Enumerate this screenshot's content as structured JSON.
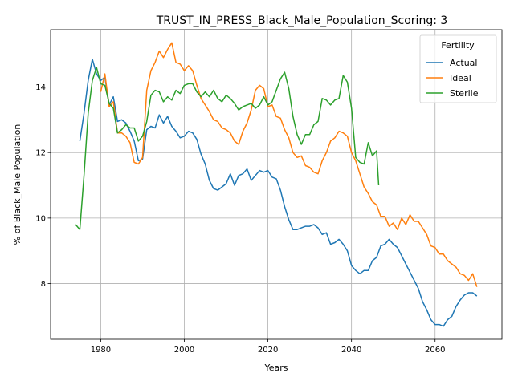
{
  "chart_data": {
    "type": "line",
    "title": "TRUST_IN_PRESS_Black_Male_Population_Scoring: 3",
    "xlabel": "Years",
    "ylabel": "% of Black_Male Population",
    "xlim": [
      1968,
      2076
    ],
    "ylim": [
      6.3,
      15.75
    ],
    "xticks": [
      1980,
      2000,
      2020,
      2040,
      2060
    ],
    "yticks": [
      8,
      10,
      12,
      14
    ],
    "grid": true,
    "legend": {
      "title": "Fertility",
      "placement": "upper right"
    },
    "series": [
      {
        "name": "Actual",
        "color": "#1f77b4",
        "x": [
          1975,
          1976,
          1977,
          1978,
          1979,
          1980,
          1981,
          1982,
          1983,
          1984,
          1985,
          1986,
          1987,
          1988,
          1989,
          1990,
          1991,
          1992,
          1993,
          1994,
          1995,
          1996,
          1997,
          1998,
          1999,
          2000,
          2001,
          2002,
          2003,
          2004,
          2005,
          2006,
          2007,
          2008,
          2009,
          2010,
          2011,
          2012,
          2013,
          2014,
          2015,
          2016,
          2017,
          2018,
          2019,
          2020,
          2021,
          2022,
          2023,
          2024,
          2025,
          2026,
          2027,
          2028,
          2029,
          2030,
          2031,
          2032,
          2033,
          2034,
          2035,
          2036,
          2037,
          2038,
          2039,
          2040,
          2041,
          2042,
          2043,
          2044,
          2045,
          2046,
          2047,
          2048,
          2049,
          2050,
          2051,
          2052,
          2053,
          2054,
          2055,
          2056,
          2057,
          2058,
          2059,
          2060,
          2061,
          2062,
          2063,
          2064,
          2065,
          2066,
          2067,
          2068,
          2069,
          2070
        ],
        "values": [
          12.35,
          13.2,
          14.2,
          14.85,
          14.4,
          14.2,
          14.3,
          13.45,
          13.7,
          12.95,
          13.0,
          12.9,
          12.65,
          12.35,
          11.75,
          11.8,
          12.7,
          12.8,
          12.75,
          13.15,
          12.9,
          13.1,
          12.8,
          12.65,
          12.45,
          12.5,
          12.65,
          12.6,
          12.4,
          11.95,
          11.65,
          11.15,
          10.9,
          10.85,
          10.95,
          11.05,
          11.35,
          11.0,
          11.3,
          11.35,
          11.5,
          11.15,
          11.3,
          11.45,
          11.4,
          11.45,
          11.25,
          11.2,
          10.85,
          10.35,
          9.95,
          9.65,
          9.65,
          9.7,
          9.75,
          9.75,
          9.8,
          9.7,
          9.5,
          9.55,
          9.2,
          9.25,
          9.35,
          9.2,
          9.0,
          8.55,
          8.4,
          8.3,
          8.4,
          8.4,
          8.7,
          8.8,
          9.15,
          9.2,
          9.35,
          9.2,
          9.1,
          8.85,
          8.6,
          8.35,
          8.1,
          7.85,
          7.45,
          7.2,
          6.9,
          6.75,
          6.75,
          6.7,
          6.9,
          7.0,
          7.3,
          7.5,
          7.65,
          7.72,
          7.72,
          7.62
        ]
      },
      {
        "name": "Ideal",
        "color": "#ff7f0e",
        "x": [
          1980,
          1981,
          1982,
          1983,
          1984,
          1985,
          1986,
          1987,
          1988,
          1989,
          1990,
          1991,
          1992,
          1993,
          1994,
          1995,
          1996,
          1997,
          1998,
          1999,
          2000,
          2001,
          2002,
          2003,
          2004,
          2005,
          2006,
          2007,
          2008,
          2009,
          2010,
          2011,
          2012,
          2013,
          2014,
          2015,
          2016,
          2017,
          2018,
          2019,
          2020,
          2021,
          2022,
          2023,
          2024,
          2025,
          2026,
          2027,
          2028,
          2029,
          2030,
          2031,
          2032,
          2033,
          2034,
          2035,
          2036,
          2037,
          2038,
          2039,
          2040,
          2041,
          2042,
          2043,
          2044,
          2045,
          2046,
          2047,
          2048,
          2049,
          2050,
          2051,
          2052,
          2053,
          2054,
          2055,
          2056,
          2057,
          2058,
          2059,
          2060,
          2061,
          2062,
          2063,
          2064,
          2065,
          2066,
          2067,
          2068,
          2069,
          2070
        ],
        "values": [
          13.85,
          14.4,
          13.4,
          13.55,
          12.6,
          12.6,
          12.5,
          12.3,
          11.7,
          11.65,
          11.85,
          13.9,
          14.5,
          14.75,
          15.1,
          14.9,
          15.15,
          15.35,
          14.75,
          14.7,
          14.5,
          14.65,
          14.5,
          14.05,
          13.65,
          13.45,
          13.25,
          13.0,
          12.95,
          12.75,
          12.7,
          12.6,
          12.35,
          12.25,
          12.65,
          12.9,
          13.3,
          13.9,
          14.05,
          13.95,
          13.4,
          13.45,
          13.1,
          13.05,
          12.7,
          12.45,
          12.0,
          11.85,
          11.9,
          11.6,
          11.55,
          11.4,
          11.35,
          11.75,
          12.0,
          12.35,
          12.45,
          12.65,
          12.6,
          12.5,
          12.0,
          11.75,
          11.35,
          10.95,
          10.75,
          10.5,
          10.4,
          10.05,
          10.05,
          9.75,
          9.85,
          9.65,
          10.0,
          9.8,
          10.1,
          9.9,
          9.9,
          9.7,
          9.5,
          9.15,
          9.1,
          8.9,
          8.9,
          8.7,
          8.6,
          8.5,
          8.3,
          8.25,
          8.1,
          8.3,
          7.9
        ]
      },
      {
        "name": "Sterile",
        "color": "#2ca02c",
        "x": [
          1974,
          1975,
          1976,
          1977,
          1978,
          1979,
          1980,
          1981,
          1982,
          1983,
          1984,
          1985,
          1986,
          1987,
          1988,
          1989,
          1990,
          1991,
          1992,
          1993,
          1994,
          1995,
          1996,
          1997,
          1998,
          1999,
          2000,
          2001,
          2002,
          2003,
          2004,
          2005,
          2006,
          2007,
          2008,
          2009,
          2010,
          2011,
          2012,
          2013,
          2014,
          2015,
          2016,
          2017,
          2018,
          2019,
          2020,
          2021,
          2022,
          2023,
          2024,
          2025,
          2026,
          2027,
          2028,
          2029,
          2030,
          2031,
          2032,
          2033,
          2034,
          2035,
          2036,
          2037,
          2038,
          2039,
          2040,
          2041,
          2042,
          2043,
          2044,
          2045,
          2046
        ],
        "values": [
          9.8,
          9.65,
          11.3,
          13.2,
          14.2,
          14.6,
          14.1,
          14.05,
          13.5,
          13.35,
          12.6,
          12.7,
          12.85,
          12.75,
          12.75,
          12.35,
          12.5,
          12.95,
          13.75,
          13.9,
          13.85,
          13.55,
          13.7,
          13.6,
          13.9,
          13.8,
          14.05,
          14.1,
          14.1,
          13.85,
          13.7,
          13.85,
          13.7,
          13.9,
          13.65,
          13.55,
          13.75,
          13.65,
          13.5,
          13.3,
          13.4,
          13.45,
          13.5,
          13.35,
          13.45,
          13.7,
          13.45,
          13.55,
          13.9,
          14.25,
          14.45,
          13.95,
          13.1,
          12.55,
          12.25,
          12.55,
          12.55,
          12.85,
          12.95,
          13.65,
          13.6,
          13.45,
          13.6,
          13.65,
          14.35,
          14.15,
          13.35,
          11.85,
          11.7,
          11.65,
          12.3,
          11.9,
          12.05
        ]
      }
    ],
    "sterile_tail": {
      "x": [
        2046,
        2046.5
      ],
      "values": [
        12.05,
        11.0
      ]
    }
  }
}
